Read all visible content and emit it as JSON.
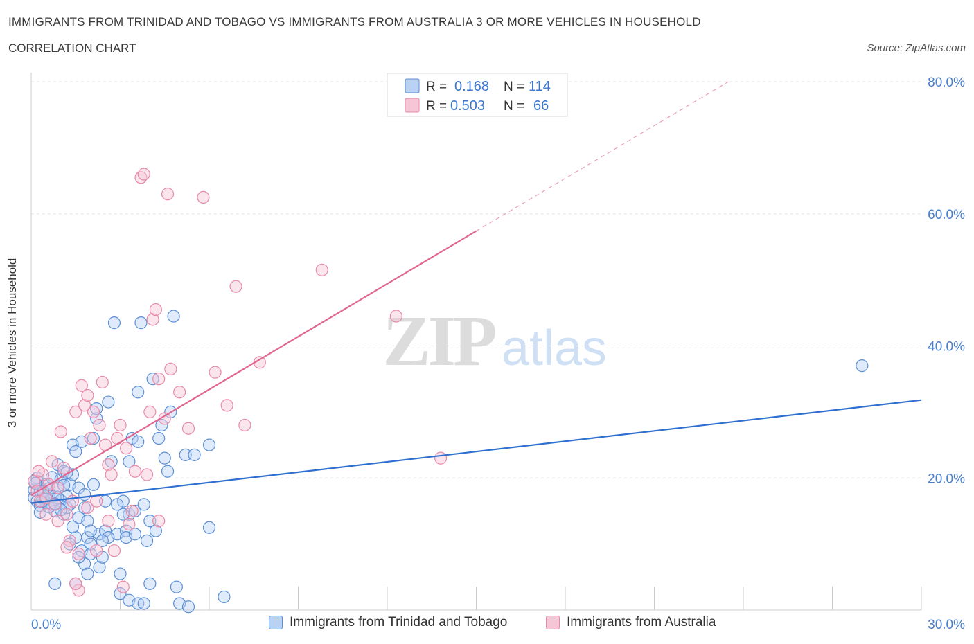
{
  "header": {
    "title": "IMMIGRANTS FROM TRINIDAD AND TOBAGO VS IMMIGRANTS FROM AUSTRALIA 3 OR MORE VEHICLES IN HOUSEHOLD",
    "subtitle": "CORRELATION CHART",
    "source": "Source: ZipAtlas.com"
  },
  "watermark": {
    "zip": "ZIP",
    "atlas": "atlas"
  },
  "colors": {
    "blue": "#5b8fd6",
    "blue_fill": "#b9d1f3",
    "blue_line": "#2f6fd0",
    "pink": "#e889a8",
    "pink_fill": "#f6c6d6",
    "pink_line": "#e0668f",
    "axis_text": "#4a7fcb"
  },
  "legend_box": {
    "rows": [
      {
        "r_label": "R =",
        "r_value": "0.168",
        "n_label": "N =",
        "n_value": "114"
      },
      {
        "r_label": "R =",
        "r_value": "0.503",
        "n_label": "N =",
        "n_value": "66"
      }
    ]
  },
  "chart_data": {
    "type": "scatter",
    "title": "IMMIGRANTS FROM TRINIDAD AND TOBAGO VS IMMIGRANTS FROM AUSTRALIA 3 OR MORE VEHICLES IN HOUSEHOLD",
    "ylabel": "3 or more Vehicles in Household",
    "xlim": [
      0,
      30
    ],
    "ylim": [
      0,
      80
    ],
    "x_tick_labels": [
      "0.0%",
      "30.0%"
    ],
    "y_ticks": [
      20,
      40,
      60,
      80
    ],
    "y_tick_labels": [
      "20.0%",
      "40.0%",
      "60.0%",
      "80.0%"
    ],
    "grid": true,
    "legend_position": "top-center",
    "series": [
      {
        "name": "Immigrants from Trinidad and Tobago",
        "color": "#5b8fd6",
        "R": 0.168,
        "N": 114,
        "trend": {
          "x0": 0,
          "y0": 16.2,
          "x1": 30,
          "y1": 31.8
        },
        "points": [
          [
            0.1,
            18.2
          ],
          [
            0.1,
            17.0
          ],
          [
            0.2,
            16.5
          ],
          [
            0.2,
            19.5
          ],
          [
            0.3,
            15.8
          ],
          [
            0.3,
            18.0
          ],
          [
            0.4,
            16.9
          ],
          [
            0.4,
            17.8
          ],
          [
            0.5,
            16.2
          ],
          [
            0.5,
            19.0
          ],
          [
            0.6,
            17.5
          ],
          [
            0.6,
            18.4
          ],
          [
            0.7,
            16.0
          ],
          [
            0.7,
            20.1
          ],
          [
            0.8,
            15.0
          ],
          [
            0.8,
            17.3
          ],
          [
            0.9,
            18.8
          ],
          [
            0.9,
            22.0
          ],
          [
            1.0,
            16.6
          ],
          [
            1.0,
            19.8
          ],
          [
            1.1,
            21.0
          ],
          [
            1.1,
            14.5
          ],
          [
            1.2,
            15.5
          ],
          [
            1.2,
            17.2
          ],
          [
            1.3,
            16.0
          ],
          [
            1.3,
            19.0
          ],
          [
            1.4,
            25.0
          ],
          [
            1.4,
            20.5
          ],
          [
            1.5,
            24.0
          ],
          [
            1.5,
            11.0
          ],
          [
            1.6,
            14.0
          ],
          [
            1.6,
            18.5
          ],
          [
            1.7,
            25.5
          ],
          [
            1.7,
            9.0
          ],
          [
            1.8,
            15.5
          ],
          [
            1.8,
            17.5
          ],
          [
            1.9,
            13.5
          ],
          [
            1.9,
            11.0
          ],
          [
            2.0,
            10.0
          ],
          [
            2.0,
            8.5
          ],
          [
            1.8,
            7.0
          ],
          [
            2.1,
            19.0
          ],
          [
            2.1,
            26.0
          ],
          [
            2.2,
            29.0
          ],
          [
            2.2,
            30.5
          ],
          [
            2.3,
            11.5
          ],
          [
            2.3,
            6.5
          ],
          [
            2.4,
            8.0
          ],
          [
            2.5,
            12.0
          ],
          [
            2.5,
            16.5
          ],
          [
            2.6,
            31.5
          ],
          [
            2.7,
            22.5
          ],
          [
            2.8,
            43.5
          ],
          [
            2.9,
            11.5
          ],
          [
            3.0,
            5.5
          ],
          [
            3.0,
            2.5
          ],
          [
            3.1,
            16.5
          ],
          [
            3.2,
            12.0
          ],
          [
            3.3,
            14.5
          ],
          [
            3.3,
            22.5
          ],
          [
            3.4,
            26.0
          ],
          [
            3.5,
            15.0
          ],
          [
            3.6,
            25.5
          ],
          [
            3.6,
            33.0
          ],
          [
            3.7,
            43.5
          ],
          [
            3.8,
            16.0
          ],
          [
            3.9,
            10.5
          ],
          [
            4.0,
            13.5
          ],
          [
            4.0,
            4.0
          ],
          [
            4.1,
            35.0
          ],
          [
            4.2,
            12.0
          ],
          [
            4.3,
            26.0
          ],
          [
            4.4,
            28.0
          ],
          [
            4.5,
            23.0
          ],
          [
            4.6,
            21.0
          ],
          [
            4.7,
            30.0
          ],
          [
            4.8,
            44.5
          ],
          [
            4.9,
            3.5
          ],
          [
            5.0,
            1.0
          ],
          [
            5.2,
            23.5
          ],
          [
            5.5,
            23.5
          ],
          [
            6.0,
            25.0
          ],
          [
            6.0,
            12.5
          ],
          [
            6.5,
            2.0
          ],
          [
            0.8,
            4.0
          ],
          [
            1.5,
            4.0
          ],
          [
            1.6,
            8.0
          ],
          [
            1.9,
            5.5
          ],
          [
            2.6,
            11.0
          ],
          [
            3.3,
            1.5
          ],
          [
            3.6,
            1.0
          ],
          [
            3.8,
            1.0
          ],
          [
            5.3,
            0.5
          ],
          [
            0.2,
            20.0
          ],
          [
            0.4,
            18.0
          ],
          [
            0.5,
            16.8
          ],
          [
            0.9,
            17.0
          ],
          [
            1.0,
            15.2
          ],
          [
            1.2,
            20.8
          ],
          [
            1.3,
            10.0
          ],
          [
            2.4,
            10.5
          ],
          [
            2.9,
            16.0
          ],
          [
            3.2,
            11.0
          ],
          [
            3.5,
            11.5
          ],
          [
            0.3,
            14.8
          ],
          [
            0.6,
            15.6
          ],
          [
            0.8,
            16.1
          ],
          [
            1.1,
            18.9
          ],
          [
            1.4,
            12.6
          ],
          [
            2.0,
            12.0
          ],
          [
            3.1,
            14.5
          ],
          [
            0.15,
            19.2
          ],
          [
            0.35,
            16.4
          ],
          [
            28.0,
            37.0
          ]
        ]
      },
      {
        "name": "Immigrants from Australia",
        "color": "#e889a8",
        "R": 0.503,
        "N": 66,
        "trend": {
          "x0": 0,
          "y0": 17.4,
          "x1": 15,
          "y1": 57.4,
          "dash_x1": 23.5,
          "dash_y1": 80.0
        },
        "points": [
          [
            0.1,
            19.5
          ],
          [
            0.2,
            18.0
          ],
          [
            0.3,
            16.5
          ],
          [
            0.4,
            20.5
          ],
          [
            0.5,
            17.0
          ],
          [
            0.6,
            19.0
          ],
          [
            0.7,
            22.5
          ],
          [
            0.8,
            16.0
          ],
          [
            0.9,
            18.5
          ],
          [
            1.0,
            27.0
          ],
          [
            1.1,
            21.5
          ],
          [
            1.2,
            14.5
          ],
          [
            1.3,
            10.5
          ],
          [
            1.4,
            16.5
          ],
          [
            1.5,
            30.0
          ],
          [
            1.6,
            8.5
          ],
          [
            1.6,
            3.0
          ],
          [
            1.7,
            34.0
          ],
          [
            1.8,
            31.0
          ],
          [
            1.9,
            32.5
          ],
          [
            1.9,
            15.5
          ],
          [
            2.0,
            26.0
          ],
          [
            2.1,
            30.0
          ],
          [
            2.2,
            16.5
          ],
          [
            2.3,
            28.0
          ],
          [
            2.4,
            34.5
          ],
          [
            2.5,
            25.0
          ],
          [
            2.6,
            22.0
          ],
          [
            2.7,
            20.5
          ],
          [
            2.8,
            9.0
          ],
          [
            2.9,
            26.0
          ],
          [
            3.0,
            28.0
          ],
          [
            3.1,
            3.5
          ],
          [
            3.2,
            24.5
          ],
          [
            3.3,
            13.0
          ],
          [
            3.4,
            15.0
          ],
          [
            3.5,
            21.0
          ],
          [
            3.7,
            65.5
          ],
          [
            3.8,
            66.0
          ],
          [
            3.9,
            20.5
          ],
          [
            4.0,
            30.0
          ],
          [
            4.1,
            44.0
          ],
          [
            4.2,
            45.5
          ],
          [
            4.3,
            35.0
          ],
          [
            4.5,
            29.0
          ],
          [
            4.6,
            63.0
          ],
          [
            4.7,
            36.5
          ],
          [
            5.0,
            33.0
          ],
          [
            5.3,
            27.5
          ],
          [
            5.8,
            62.5
          ],
          [
            6.2,
            36.0
          ],
          [
            6.6,
            31.0
          ],
          [
            6.9,
            49.0
          ],
          [
            7.2,
            28.0
          ],
          [
            7.7,
            37.5
          ],
          [
            9.8,
            51.5
          ],
          [
            12.3,
            44.5
          ],
          [
            13.8,
            23.0
          ],
          [
            0.5,
            14.5
          ],
          [
            0.9,
            13.5
          ],
          [
            1.2,
            9.5
          ],
          [
            1.5,
            4.0
          ],
          [
            2.2,
            9.0
          ],
          [
            2.6,
            13.5
          ],
          [
            4.3,
            13.5
          ],
          [
            0.25,
            21.0
          ]
        ]
      }
    ]
  },
  "legend_bottom": {
    "items": [
      {
        "label": "Immigrants from Trinidad and Tobago"
      },
      {
        "label": "Immigrants from Australia"
      }
    ]
  }
}
